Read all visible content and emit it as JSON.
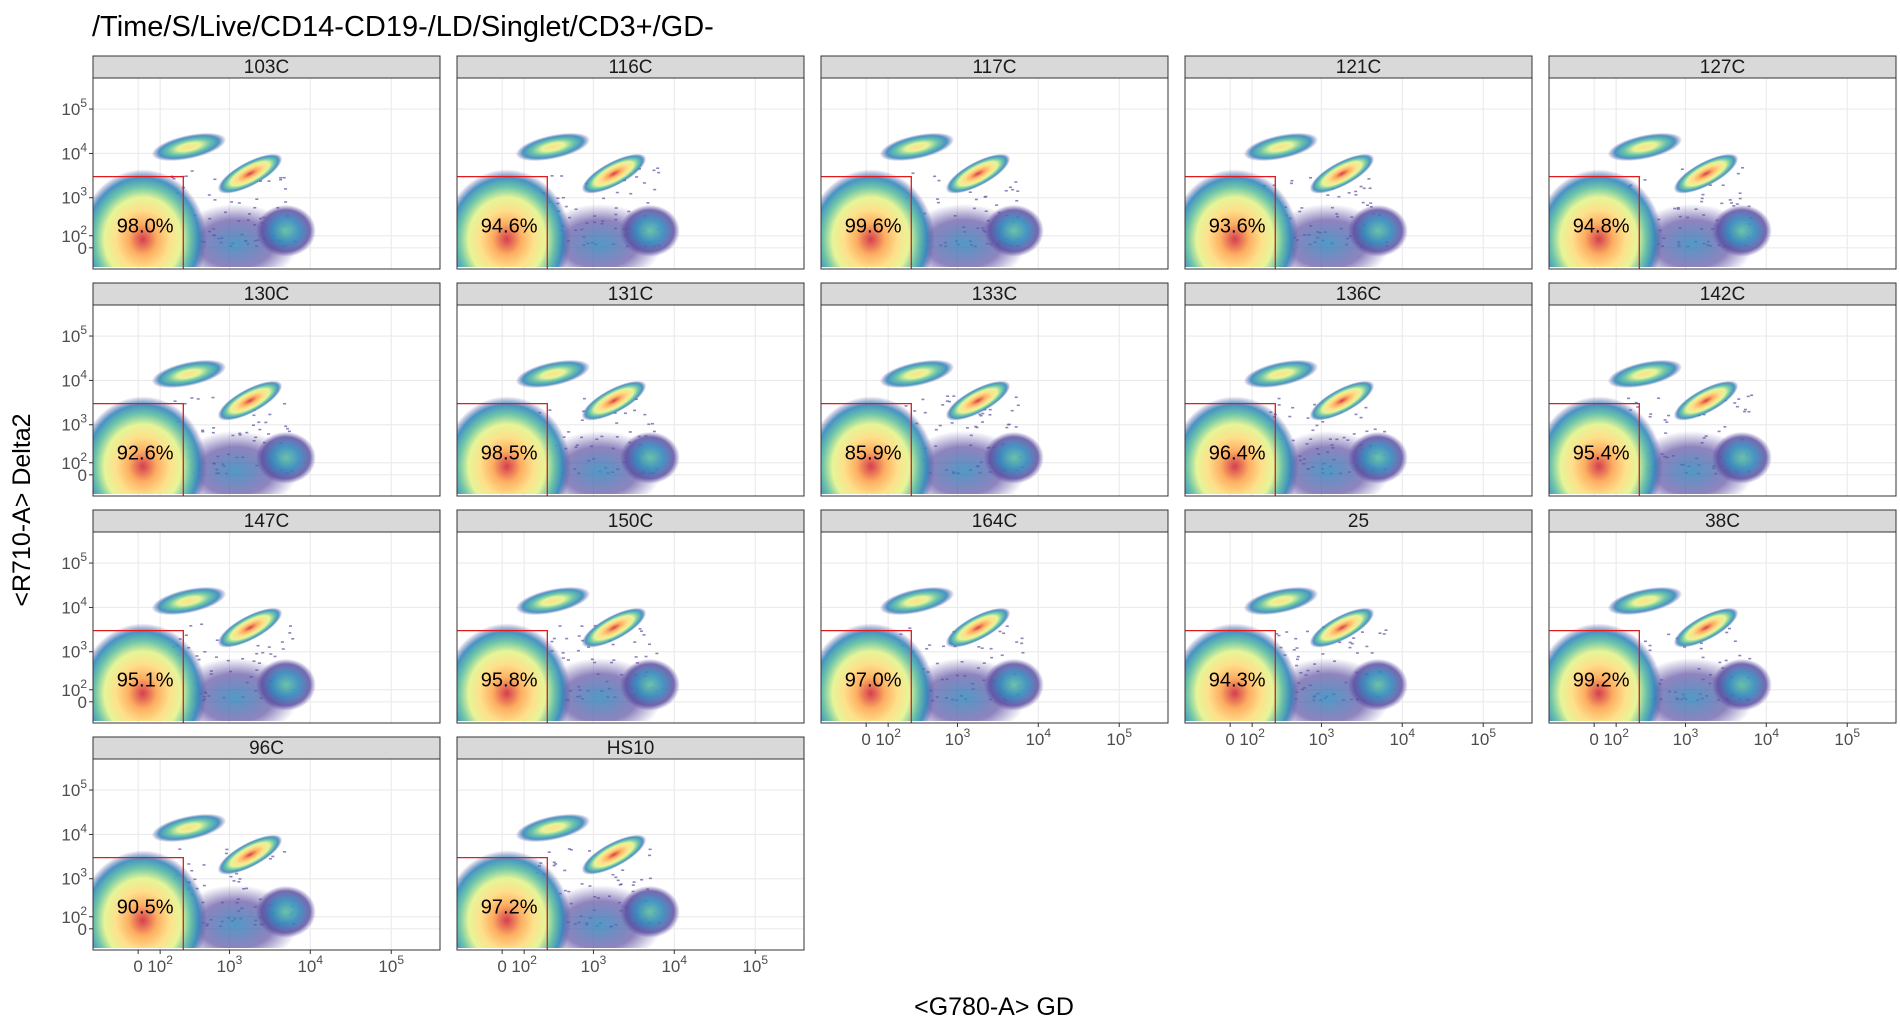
{
  "chart_data": {
    "type": "scatter",
    "title": "/Time/S/Live/CD14-CD19-/LD/Singlet/CD3+/GD-",
    "xlabel": "<G780-A> GD",
    "ylabel": "<R710-A> Delta2",
    "x_scale": "biexponential",
    "y_scale": "biexponential",
    "x_ticks": [
      {
        "value": 0,
        "label": "0"
      },
      {
        "value": 100,
        "label": "10",
        "sup": "2"
      },
      {
        "value": 1000,
        "label": "10",
        "sup": "3"
      },
      {
        "value": 10000,
        "label": "10",
        "sup": "4"
      },
      {
        "value": 100000,
        "label": "10",
        "sup": "5"
      }
    ],
    "y_ticks": [
      {
        "value": 0,
        "label": "0"
      },
      {
        "value": 100,
        "label": "10",
        "sup": "2"
      },
      {
        "value": 1000,
        "label": "10",
        "sup": "3"
      },
      {
        "value": 10000,
        "label": "10",
        "sup": "4"
      },
      {
        "value": 100000,
        "label": "10",
        "sup": "5"
      }
    ],
    "gate": {
      "x_max": 250,
      "y_max": 3000,
      "color": "#e31a1c"
    },
    "colormap": [
      "#5e4fa2",
      "#3288bd",
      "#66c2a5",
      "#abdda4",
      "#e6f598",
      "#fee08b",
      "#fdae61",
      "#f46d43",
      "#d53e4f",
      "#9e0142"
    ],
    "grid": true,
    "panels": [
      {
        "name": "103C",
        "gate_percent": "98.0%"
      },
      {
        "name": "116C",
        "gate_percent": "94.6%"
      },
      {
        "name": "117C",
        "gate_percent": "99.6%"
      },
      {
        "name": "121C",
        "gate_percent": "93.6%"
      },
      {
        "name": "127C",
        "gate_percent": "94.8%"
      },
      {
        "name": "130C",
        "gate_percent": "92.6%"
      },
      {
        "name": "131C",
        "gate_percent": "98.5%"
      },
      {
        "name": "133C",
        "gate_percent": "85.9%"
      },
      {
        "name": "136C",
        "gate_percent": "96.4%"
      },
      {
        "name": "142C",
        "gate_percent": "95.4%"
      },
      {
        "name": "147C",
        "gate_percent": "95.1%"
      },
      {
        "name": "150C",
        "gate_percent": "95.8%"
      },
      {
        "name": "164C",
        "gate_percent": "97.0%"
      },
      {
        "name": "25",
        "gate_percent": "94.3%"
      },
      {
        "name": "38C",
        "gate_percent": "99.2%"
      },
      {
        "name": "96C",
        "gate_percent": "90.5%"
      },
      {
        "name": "HS10",
        "gate_percent": "97.2%"
      }
    ]
  }
}
